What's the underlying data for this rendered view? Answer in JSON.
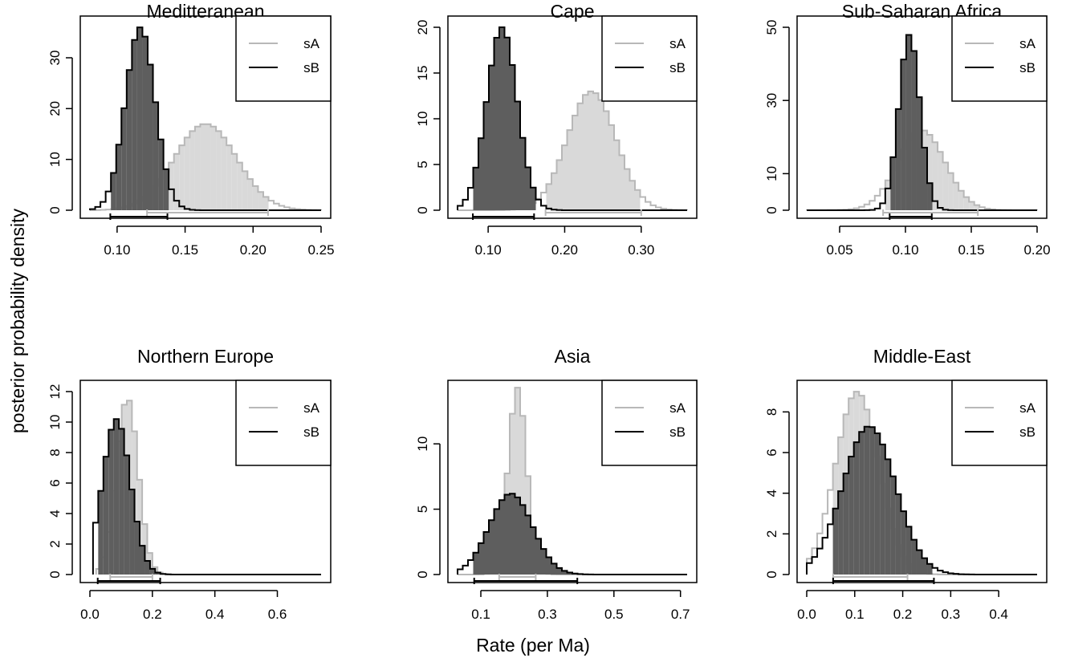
{
  "figure": {
    "ylabel": "posterior probability density",
    "xlabel": "Rate (per Ma)"
  },
  "colors": {
    "sA_fill": "#d9d9d9",
    "sA_line": "#b8b8b8",
    "sB_fill": "#5e5e5e",
    "sB_line": "#000000",
    "frame": "#000000"
  },
  "chart_data": [
    {
      "type": "area",
      "title": "Meditteranean",
      "xlim": [
        0.08,
        0.25
      ],
      "ylim": [
        0,
        36
      ],
      "xticks": [
        {
          "v": 0.1,
          "label": "0.10"
        },
        {
          "v": 0.15,
          "label": "0.15"
        },
        {
          "v": 0.2,
          "label": "0.20"
        },
        {
          "v": 0.25,
          "label": "0.25"
        }
      ],
      "yticks": [
        {
          "v": 0,
          "label": "0"
        },
        {
          "v": 10,
          "label": "10"
        },
        {
          "v": 20,
          "label": "20"
        },
        {
          "v": 30,
          "label": "30"
        }
      ],
      "legend": [
        "sA",
        "sB"
      ],
      "series": [
        {
          "name": "sA",
          "mean": 0.165,
          "sd": 0.023,
          "peak": 17,
          "lo": 0.08,
          "hi": 0.25,
          "hpd": [
            0.122,
            0.211
          ]
        },
        {
          "name": "sB",
          "mean": 0.117,
          "sd": 0.011,
          "peak": 36,
          "lo": 0.08,
          "hi": 0.25,
          "hpd": [
            0.095,
            0.137
          ]
        }
      ]
    },
    {
      "type": "area",
      "title": "Cape",
      "xlim": [
        0.06,
        0.36
      ],
      "ylim": [
        0,
        20
      ],
      "xticks": [
        {
          "v": 0.1,
          "label": "0.10"
        },
        {
          "v": 0.2,
          "label": "0.20"
        },
        {
          "v": 0.3,
          "label": "0.30"
        }
      ],
      "yticks": [
        {
          "v": 0,
          "label": "0"
        },
        {
          "v": 5,
          "label": "5"
        },
        {
          "v": 10,
          "label": "10"
        },
        {
          "v": 15,
          "label": "15"
        },
        {
          "v": 20,
          "label": "20"
        }
      ],
      "legend": [
        "sA",
        "sB"
      ],
      "series": [
        {
          "name": "sA",
          "mean": 0.235,
          "sd": 0.032,
          "peak": 13,
          "lo": 0.06,
          "hi": 0.36,
          "hpd": [
            0.175,
            0.3
          ]
        },
        {
          "name": "sB",
          "mean": 0.118,
          "sd": 0.02,
          "peak": 20,
          "lo": 0.06,
          "hi": 0.36,
          "hpd": [
            0.08,
            0.16
          ]
        }
      ]
    },
    {
      "type": "area",
      "title": "Sub-Saharan Africa",
      "xlim": [
        0.025,
        0.2
      ],
      "ylim": [
        0,
        50
      ],
      "xticks": [
        {
          "v": 0.05,
          "label": "0.05"
        },
        {
          "v": 0.1,
          "label": "0.10"
        },
        {
          "v": 0.15,
          "label": "0.15"
        },
        {
          "v": 0.2,
          "label": "0.20"
        }
      ],
      "yticks": [
        {
          "v": 0,
          "label": "0"
        },
        {
          "v": 10,
          "label": "10"
        },
        {
          "v": 30,
          "label": "30"
        },
        {
          "v": 50,
          "label": "50"
        }
      ],
      "legend": [
        "sA",
        "sB"
      ],
      "series": [
        {
          "name": "sA",
          "mean": 0.112,
          "sd": 0.018,
          "peak": 22,
          "lo": 0.025,
          "hi": 0.2,
          "hpd": [
            0.083,
            0.155
          ]
        },
        {
          "name": "sB",
          "mean": 0.103,
          "sd": 0.008,
          "peak": 48,
          "lo": 0.025,
          "hi": 0.2,
          "hpd": [
            0.088,
            0.12
          ]
        }
      ]
    },
    {
      "type": "area",
      "title": "Northern Europe",
      "xlim": [
        0.0,
        0.74
      ],
      "ylim": [
        0,
        12
      ],
      "xticks": [
        {
          "v": 0.0,
          "label": "0.0"
        },
        {
          "v": 0.2,
          "label": "0.2"
        },
        {
          "v": 0.4,
          "label": "0.4"
        },
        {
          "v": 0.6,
          "label": "0.6"
        }
      ],
      "yticks": [
        {
          "v": 0,
          "label": "0"
        },
        {
          "v": 2,
          "label": "2"
        },
        {
          "v": 4,
          "label": "4"
        },
        {
          "v": 6,
          "label": "6"
        },
        {
          "v": 8,
          "label": "8"
        },
        {
          "v": 10,
          "label": "10"
        },
        {
          "v": 12,
          "label": "12"
        }
      ],
      "legend": [
        "sA",
        "sB"
      ],
      "series": [
        {
          "name": "sA",
          "mean": 0.12,
          "sd": 0.035,
          "peak": 11.6,
          "lo": 0.02,
          "hi": 0.74,
          "hpd": [
            0.065,
            0.2
          ]
        },
        {
          "name": "sB",
          "mean": 0.085,
          "sd": 0.045,
          "peak": 10.2,
          "lo": 0.01,
          "hi": 0.74,
          "hpd": [
            0.025,
            0.225
          ]
        }
      ]
    },
    {
      "type": "area",
      "title": "Asia",
      "xlim": [
        0.03,
        0.72
      ],
      "ylim": [
        0,
        14
      ],
      "xticks": [
        {
          "v": 0.1,
          "label": "0.1"
        },
        {
          "v": 0.3,
          "label": "0.3"
        },
        {
          "v": 0.5,
          "label": "0.5"
        },
        {
          "v": 0.7,
          "label": "0.7"
        }
      ],
      "yticks": [
        {
          "v": 0,
          "label": "0"
        },
        {
          "v": 5,
          "label": "5"
        },
        {
          "v": 10,
          "label": "10"
        }
      ],
      "legend": [
        "sA",
        "sB"
      ],
      "series": [
        {
          "name": "sA",
          "mean": 0.21,
          "sd": 0.028,
          "peak": 14.3,
          "lo": 0.03,
          "hi": 0.72,
          "hpd": [
            0.155,
            0.265
          ]
        },
        {
          "name": "sB",
          "mean": 0.19,
          "sd": 0.065,
          "peak": 6.2,
          "lo": 0.03,
          "hi": 0.72,
          "hpd": [
            0.08,
            0.39
          ]
        }
      ]
    },
    {
      "type": "area",
      "title": "Middle-East",
      "xlim": [
        0.0,
        0.48
      ],
      "ylim": [
        0,
        9
      ],
      "xticks": [
        {
          "v": 0.0,
          "label": "0.0"
        },
        {
          "v": 0.1,
          "label": "0.1"
        },
        {
          "v": 0.2,
          "label": "0.2"
        },
        {
          "v": 0.3,
          "label": "0.3"
        },
        {
          "v": 0.4,
          "label": "0.4"
        }
      ],
      "yticks": [
        {
          "v": 0,
          "label": "0"
        },
        {
          "v": 2,
          "label": "2"
        },
        {
          "v": 4,
          "label": "4"
        },
        {
          "v": 6,
          "label": "6"
        },
        {
          "v": 8,
          "label": "8"
        }
      ],
      "legend": [
        "sA",
        "sB"
      ],
      "series": [
        {
          "name": "sA",
          "mean": 0.105,
          "sd": 0.045,
          "peak": 9.0,
          "lo": 0.0,
          "hi": 0.48,
          "hpd": [
            0.055,
            0.21
          ]
        },
        {
          "name": "sB",
          "mean": 0.13,
          "sd": 0.055,
          "peak": 7.3,
          "lo": 0.0,
          "hi": 0.48,
          "hpd": [
            0.055,
            0.265
          ]
        }
      ]
    }
  ]
}
